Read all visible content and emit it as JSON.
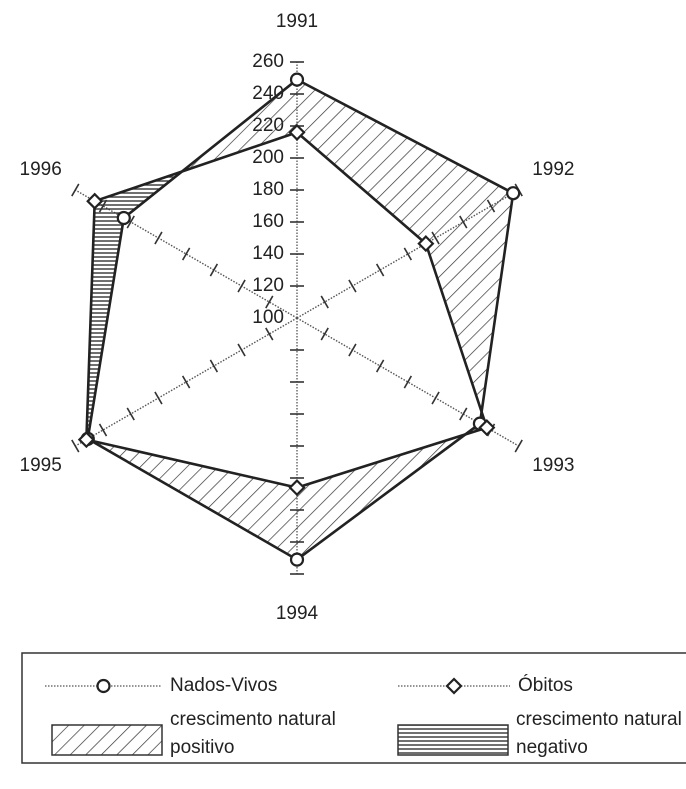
{
  "chart_data": {
    "type": "radar",
    "categories": [
      "1991",
      "1992",
      "1993",
      "1994",
      "1995",
      "1996"
    ],
    "series": [
      {
        "name": "Nados-Vivos",
        "color": "#222222",
        "marker": "circle",
        "values": [
          249,
          256,
          232,
          251,
          251,
          225
        ]
      },
      {
        "name": "Óbitos",
        "color": "#222222",
        "marker": "diamond",
        "values": [
          216,
          193,
          237,
          206,
          252,
          246
        ]
      }
    ],
    "rlim": [
      100,
      260
    ],
    "rticks": [
      100,
      120,
      140,
      160,
      180,
      200,
      220,
      240,
      260
    ],
    "fill_legend": [
      {
        "label": [
          "crescimento natural",
          "positivo"
        ],
        "hatch": "diagonal"
      },
      {
        "label": [
          "crescimento natural",
          "negativo"
        ],
        "hatch": "horizontal"
      }
    ]
  }
}
